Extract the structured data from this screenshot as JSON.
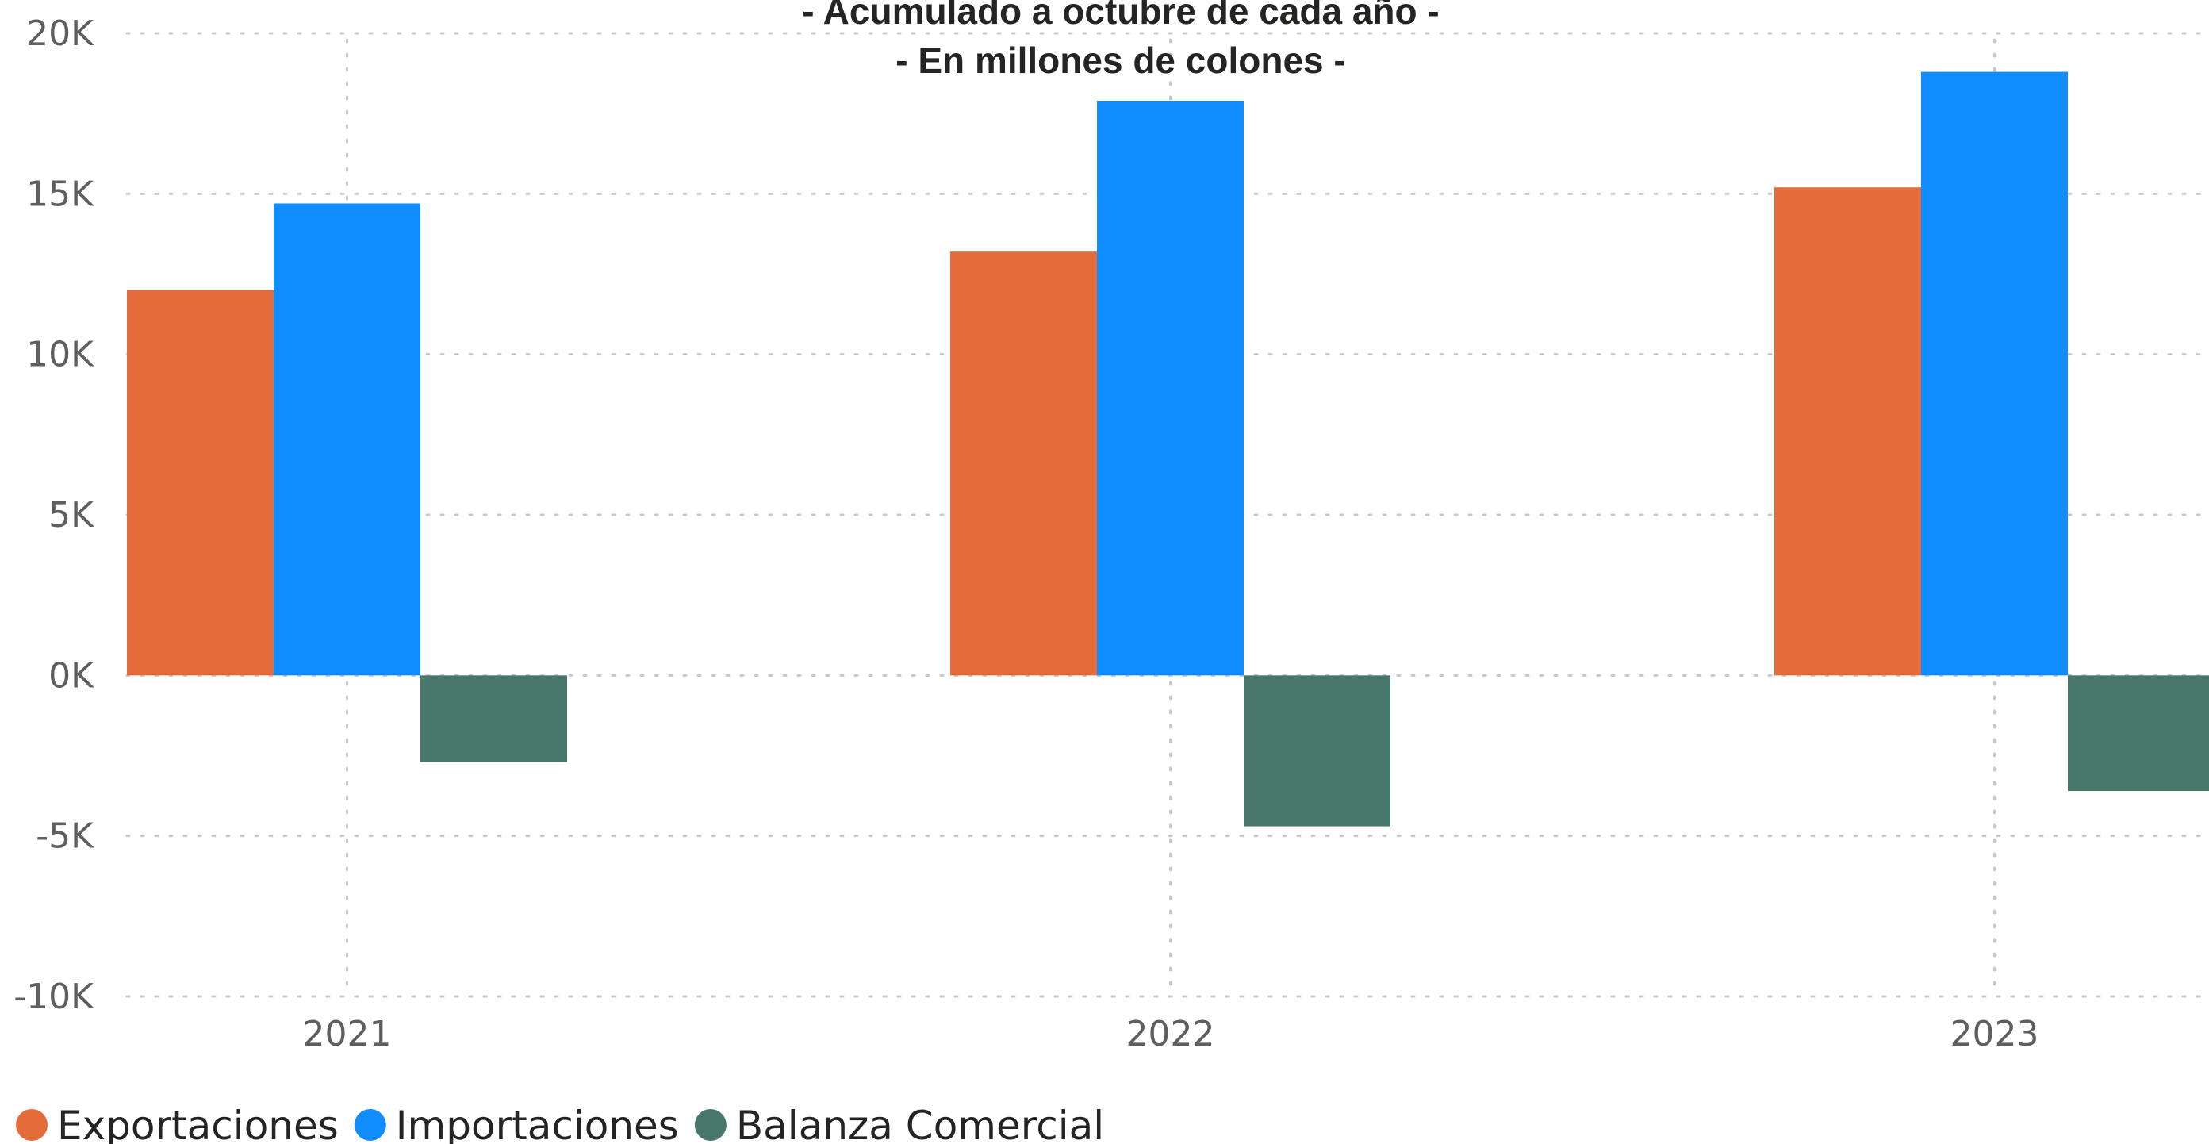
{
  "chart_data": {
    "type": "bar",
    "title": "- Acumulado a octubre de cada año -",
    "subtitle": "- En millones de colones -",
    "categories": [
      "2021",
      "2022",
      "2023"
    ],
    "series": [
      {
        "name": "Exportaciones",
        "color": "#E46C3A",
        "values": [
          12000,
          13200,
          15200
        ]
      },
      {
        "name": "Importaciones",
        "color": "#118DFF",
        "values": [
          14700,
          17900,
          18800
        ]
      },
      {
        "name": "Balanza Comercial",
        "color": "#47776B",
        "values": [
          -2700,
          -4700,
          -3600
        ]
      }
    ],
    "ylim": [
      -10000,
      20000
    ],
    "yticks": [
      20000,
      15000,
      10000,
      5000,
      0,
      -5000,
      -10000
    ],
    "ytick_labels": [
      "20K",
      "15K",
      "10K",
      "5K",
      "0K",
      "-5K",
      "-10K"
    ],
    "xlabel": "",
    "ylabel": "",
    "grid": true,
    "legend_position": "bottom-left"
  }
}
